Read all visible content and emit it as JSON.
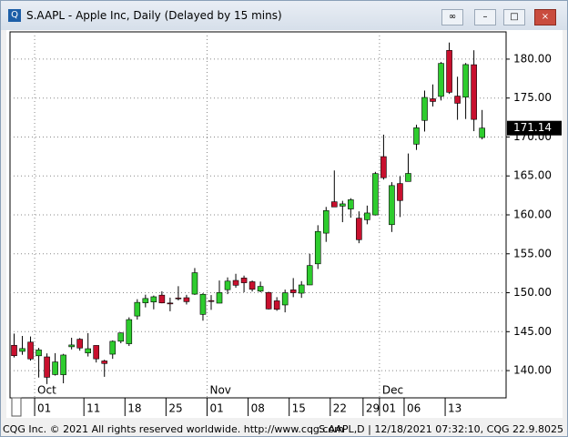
{
  "window_title": "S.AAPL - Apple Inc, Daily (Delayed by 15 mins)",
  "footer": {
    "left": "CQG Inc. © 2021 All rights reserved worldwide. http://www.cqg.com",
    "right": "S.AAPL,D | 12/18/2021 07:32:10, CQG 22.9.8025"
  },
  "chart_data": {
    "type": "candlestick",
    "categories": [
      null,
      null,
      null,
      "01",
      null,
      null,
      null,
      null,
      null,
      "11",
      null,
      null,
      null,
      null,
      "18",
      null,
      null,
      null,
      null,
      "25",
      null,
      null,
      null,
      null,
      "01",
      null,
      null,
      null,
      null,
      "08",
      null,
      null,
      null,
      null,
      "15",
      null,
      null,
      null,
      null,
      "22",
      null,
      null,
      null,
      "29",
      null,
      "01",
      null,
      null,
      "06",
      null,
      null,
      null,
      null,
      "13",
      null,
      null,
      null,
      null
    ],
    "month_labels": [
      null,
      null,
      null,
      "Oct",
      null,
      null,
      null,
      null,
      null,
      null,
      null,
      null,
      null,
      null,
      null,
      null,
      null,
      null,
      null,
      null,
      null,
      null,
      null,
      null,
      "Nov",
      null,
      null,
      null,
      null,
      null,
      null,
      null,
      null,
      null,
      null,
      null,
      null,
      null,
      null,
      null,
      null,
      null,
      null,
      null,
      null,
      "Dec",
      null,
      null,
      null,
      null,
      null,
      null,
      null,
      null,
      null,
      null,
      null,
      null
    ],
    "open": [
      143.25,
      142.47,
      143.66,
      141.9,
      141.76,
      139.49,
      139.47,
      143.06,
      144.03,
      142.27,
      143.23,
      141.24,
      142.11,
      143.77,
      143.45,
      147.01,
      148.7,
      148.81,
      149.69,
      148.68,
      149.33,
      149.36,
      149.82,
      147.22,
      148.99,
      148.66,
      150.39,
      151.58,
      151.89,
      151.41,
      150.2,
      150.02,
      148.96,
      148.43,
      150.37,
      149.94,
      151,
      153.71,
      157.65,
      161.68,
      161.12,
      160.75,
      159.57,
      159.37,
      159.99,
      167.48,
      158.74,
      164.02,
      164.29,
      169.08,
      172.13,
      174.91,
      175.21,
      181.12,
      175.25,
      175.11,
      179.28,
      169.93
    ],
    "high": [
      144.75,
      144.45,
      144.38,
      142.92,
      142.21,
      142.24,
      142.15,
      144.22,
      144.18,
      144.81,
      143.25,
      141.4,
      143.88,
      144.9,
      146.84,
      149.17,
      149.75,
      149.64,
      150.18,
      149.37,
      150.84,
      149.73,
      153.17,
      149.94,
      149.7,
      151.57,
      151.97,
      152.43,
      152.2,
      151.57,
      151.43,
      150.13,
      149.43,
      150.4,
      151.88,
      151.49,
      155,
      158.67,
      161.02,
      165.7,
      161.8,
      162.14,
      160.45,
      161.19,
      165.52,
      170.3,
      164.2,
      164.96,
      167.88,
      171.58,
      175.96,
      176.75,
      179.63,
      182.13,
      177.74,
      179.5,
      181.14,
      173.47
    ],
    "low": [
      141.69,
      142.03,
      141.28,
      139.11,
      138.27,
      139.36,
      138.37,
      142.72,
      142.56,
      141.81,
      141.04,
      139.2,
      141.51,
      143.51,
      143.16,
      146.55,
      148.12,
      147.87,
      148.64,
      147.62,
      149.01,
      148.49,
      149.72,
      146.41,
      147.8,
      148.65,
      149.82,
      150.64,
      150.06,
      150.16,
      150.06,
      147.85,
      147.68,
      147.48,
      149.43,
      149.34,
      150.99,
      153.05,
      156.53,
      161,
      159.06,
      159.64,
      156.36,
      158.79,
      159.92,
      164.53,
      157.8,
      159.72,
      164.28,
      168.34,
      170.7,
      173.92,
      174.69,
      175.53,
      172.21,
      172.31,
      170.75,
      169.69
    ],
    "close": [
      141.91,
      142.83,
      141.5,
      142.65,
      139.14,
      141.11,
      142,
      143.29,
      142.9,
      142.81,
      141.51,
      140.91,
      143.76,
      144.84,
      146.55,
      148.76,
      149.26,
      149.48,
      148.69,
      148.64,
      149.32,
      148.85,
      152.57,
      149.8,
      148.96,
      150.02,
      151.49,
      150.96,
      151.28,
      150.44,
      150.81,
      147.92,
      147.87,
      149.99,
      150,
      151,
      153.49,
      157.87,
      160.55,
      161.02,
      161.41,
      161.94,
      156.81,
      160.24,
      165.3,
      164.77,
      163.76,
      161.84,
      165.32,
      171.18,
      175.08,
      174.56,
      179.45,
      175.74,
      174.33,
      179.3,
      172.26,
      171.14
    ],
    "up_color": "#2ecc2e",
    "down_color": "#c8102e",
    "ylim": [
      136.5,
      183.5
    ],
    "yticks": [
      {
        "value": 140,
        "label": "140.00"
      },
      {
        "value": 145,
        "label": "145.00"
      },
      {
        "value": 150,
        "label": "150.00"
      },
      {
        "value": 155,
        "label": "155.00"
      },
      {
        "value": 160,
        "label": "160.00"
      },
      {
        "value": 165,
        "label": "165.00"
      },
      {
        "value": 170,
        "label": "170.00"
      },
      {
        "value": 175,
        "label": "175.00"
      },
      {
        "value": 180,
        "label": "180.00"
      }
    ],
    "last_price": 171.14,
    "grid": true
  }
}
